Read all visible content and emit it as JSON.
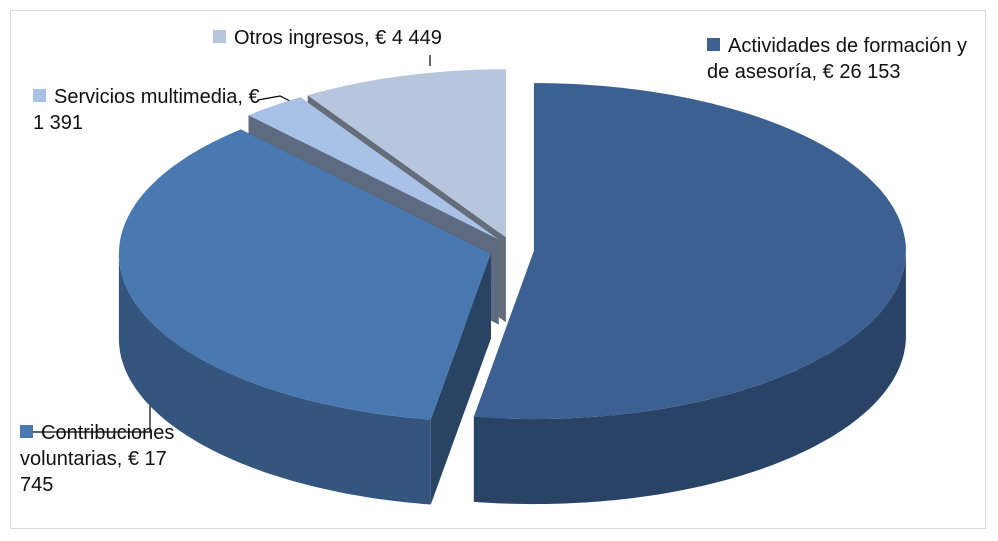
{
  "chart_data": {
    "type": "pie3d",
    "categories": [
      "Actividades de formación y de asesoría,",
      "Contribuciones voluntarias,",
      "Servicios multimedia,",
      "Otros ingresos,"
    ],
    "values": [
      26153,
      17745,
      1391,
      4449
    ],
    "value_labels": [
      "€ 26 153",
      "€ 17 745",
      "€ 1 391",
      "€ 4 449"
    ],
    "colors": [
      "#3b6091",
      "#4a79b2",
      "#a9c1e6",
      "#b7c5dd"
    ]
  }
}
